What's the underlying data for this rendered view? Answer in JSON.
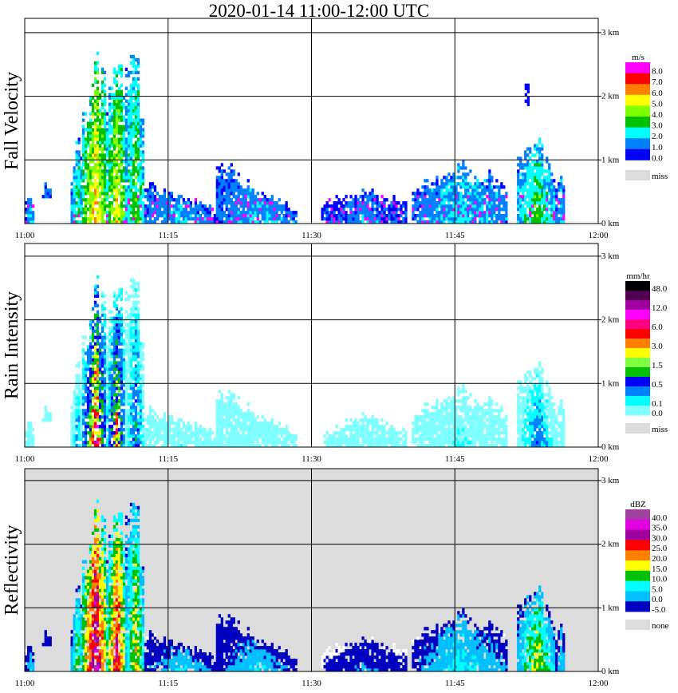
{
  "title": "2020-01-14  11:00-12:00 UTC",
  "chart_data": [
    {
      "type": "heatmap",
      "title": "Fall Velocity",
      "unit": "m/s",
      "x_ticks": [
        "11:00",
        "11:15",
        "11:30",
        "11:45",
        "12:00"
      ],
      "y_ticks": [
        "0 km",
        "1 km",
        "2 km",
        "3 km"
      ],
      "xlim_minutes": [
        0,
        60
      ],
      "ylim_km": [
        0,
        3.2
      ],
      "legend": {
        "colors": [
          "#ff00ff",
          "#ff0000",
          "#ff8000",
          "#ffff00",
          "#80ff00",
          "#00c000",
          "#00ffff",
          "#0080ff",
          "#0000ff"
        ],
        "labels": [
          {
            "seg": 0,
            "text": "8.0"
          },
          {
            "seg": 1,
            "text": "7.0"
          },
          {
            "seg": 2,
            "text": "6.0"
          },
          {
            "seg": 3,
            "text": "5.0"
          },
          {
            "seg": 4,
            "text": "4.0"
          },
          {
            "seg": 5,
            "text": "3.0"
          },
          {
            "seg": 6,
            "text": "2.0"
          },
          {
            "seg": 7,
            "text": "1.0"
          },
          {
            "seg": 8,
            "text": "0.0"
          }
        ],
        "missing_label": "miss",
        "missing_color": "#dcdcdc"
      },
      "background": "#ffffff"
    },
    {
      "type": "heatmap",
      "title": "Rain Intensity",
      "unit": "mm/hr",
      "x_ticks": [
        "11:00",
        "11:15",
        "11:30",
        "11:45",
        "12:00"
      ],
      "y_ticks": [
        "0 km",
        "1 km",
        "2 km",
        "3 km"
      ],
      "xlim_minutes": [
        0,
        60
      ],
      "ylim_km": [
        0,
        3.2
      ],
      "legend": {
        "colors": [
          "#000000",
          "#500050",
          "#a000a0",
          "#ff00ff",
          "#ff0080",
          "#ff0000",
          "#ff8000",
          "#ffff00",
          "#80ff40",
          "#00c000",
          "#0000ff",
          "#0080ff",
          "#00ffff",
          "#80ffff"
        ],
        "labels": [
          {
            "seg": 0,
            "text": "48.0"
          },
          {
            "seg": 2,
            "text": "12.0"
          },
          {
            "seg": 4,
            "text": "6.0"
          },
          {
            "seg": 6,
            "text": "3.0"
          },
          {
            "seg": 8,
            "text": "1.5"
          },
          {
            "seg": 10,
            "text": "0.5"
          },
          {
            "seg": 12,
            "text": "0.1"
          },
          {
            "seg": 13,
            "text": "0.0"
          }
        ],
        "missing_label": "miss",
        "missing_color": "#dcdcdc"
      },
      "background": "#ffffff"
    },
    {
      "type": "heatmap",
      "title": "Reflectivity",
      "unit": "dBZ",
      "x_ticks": [
        "11:00",
        "11:15",
        "11:30",
        "11:45",
        "12:00"
      ],
      "y_ticks": [
        "0 km",
        "1 km",
        "2 km",
        "3 km"
      ],
      "xlim_minutes": [
        0,
        60
      ],
      "ylim_km": [
        0,
        3.2
      ],
      "legend": {
        "colors": [
          "#a040a0",
          "#e000e0",
          "#a000a0",
          "#ff0000",
          "#ff8000",
          "#ffff00",
          "#00c000",
          "#00ffff",
          "#00c0ff",
          "#0000c0"
        ],
        "labels": [
          {
            "seg": 0,
            "text": "40.0"
          },
          {
            "seg": 1,
            "text": "35.0"
          },
          {
            "seg": 2,
            "text": "30.0"
          },
          {
            "seg": 3,
            "text": "25.0"
          },
          {
            "seg": 4,
            "text": "20.0"
          },
          {
            "seg": 5,
            "text": "15.0"
          },
          {
            "seg": 6,
            "text": "10.0"
          },
          {
            "seg": 7,
            "text": "5.0"
          },
          {
            "seg": 8,
            "text": "0.0"
          },
          {
            "seg": 9,
            "text": "-5.0"
          }
        ],
        "missing_label": "none",
        "missing_color": "#dcdcdc"
      },
      "background": "#dcdcdc"
    }
  ],
  "echo_regions": [
    {
      "start_min": 0,
      "end_min": 1,
      "top_km": [
        0.3,
        0.4,
        0.2
      ],
      "base_km": 0,
      "strength": 0.3
    },
    {
      "start_min": 1.8,
      "end_min": 2.6,
      "top_km": [
        0.6,
        0.7,
        0.6
      ],
      "base_km": 0.4,
      "strength": 0.25
    },
    {
      "start_min": 4.8,
      "end_min": 6,
      "top_km": [
        0.6,
        1.3,
        1.0
      ],
      "base_km": 0,
      "strength": 0.5
    },
    {
      "start_min": 6,
      "end_min": 8.5,
      "top_km": [
        1.8,
        2.6,
        2.2
      ],
      "base_km": 0,
      "strength": 1.0
    },
    {
      "start_min": 8.5,
      "end_min": 10.5,
      "top_km": [
        2.0,
        2.4,
        2.3
      ],
      "base_km": 0,
      "strength": 0.85
    },
    {
      "start_min": 10.5,
      "end_min": 12.5,
      "top_km": [
        2.4,
        2.8,
        1.0
      ],
      "base_km": 0,
      "strength": 0.6
    },
    {
      "start_min": 12.5,
      "end_min": 20,
      "top_km": [
        0.6,
        0.4,
        0.2
      ],
      "base_km": 0,
      "strength": 0.3
    },
    {
      "start_min": 20,
      "end_min": 28.5,
      "top_km": [
        1.0,
        0.5,
        0.2
      ],
      "base_km": 0,
      "strength": 0.3
    },
    {
      "start_min": 31,
      "end_min": 40,
      "top_km": [
        0.3,
        0.5,
        0.3
      ],
      "base_km": 0,
      "strength": 0.2
    },
    {
      "start_min": 40.5,
      "end_min": 50.5,
      "top_km": [
        0.5,
        0.9,
        0.6
      ],
      "base_km": 0,
      "strength": 0.35
    },
    {
      "start_min": 51.5,
      "end_min": 55.5,
      "top_km": [
        1.0,
        1.4,
        0.7
      ],
      "base_km": 0,
      "strength": 0.55
    },
    {
      "start_min": 52.3,
      "end_min": 52.6,
      "top_km": [
        1.95,
        1.95,
        1.95
      ],
      "base_km": 1.85,
      "strength": 0.1
    },
    {
      "start_min": 55.5,
      "end_min": 56.5,
      "top_km": [
        0.6,
        0.9,
        0.4
      ],
      "base_km": 0,
      "strength": 0.3
    }
  ]
}
